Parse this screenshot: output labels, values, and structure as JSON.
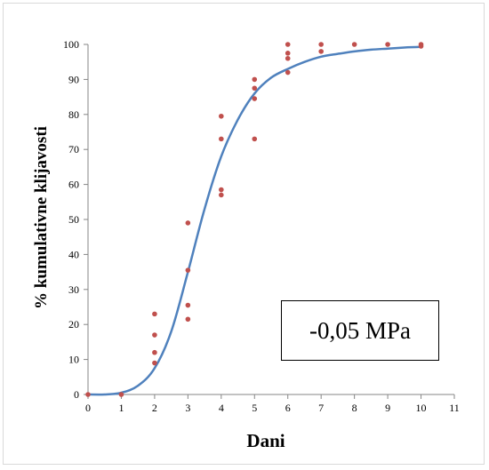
{
  "chart_data": {
    "type": "scatter",
    "title": "",
    "xlabel": "Dani",
    "ylabel": "% kumulativne klijavosti",
    "annotation": "-0,05 MPa",
    "xlim": [
      0,
      11
    ],
    "ylim": [
      0,
      100
    ],
    "x_ticks": [
      0,
      1,
      2,
      3,
      4,
      5,
      6,
      7,
      8,
      9,
      10,
      11
    ],
    "y_ticks": [
      0,
      10,
      20,
      30,
      40,
      50,
      60,
      70,
      80,
      90,
      100
    ],
    "grid": false,
    "series": [
      {
        "kind": "points",
        "color": "#c0504d",
        "points": [
          [
            0,
            0
          ],
          [
            1,
            0
          ],
          [
            2,
            23
          ],
          [
            2,
            17
          ],
          [
            2,
            12
          ],
          [
            2,
            9
          ],
          [
            3,
            49
          ],
          [
            3,
            35.5
          ],
          [
            3,
            25.5
          ],
          [
            3,
            21.5
          ],
          [
            4,
            79.5
          ],
          [
            4,
            73
          ],
          [
            4,
            58.5
          ],
          [
            4,
            57
          ],
          [
            5,
            90
          ],
          [
            5,
            87.5
          ],
          [
            5,
            84.5
          ],
          [
            5,
            73
          ],
          [
            6,
            100
          ],
          [
            6,
            97.5
          ],
          [
            6,
            96
          ],
          [
            6,
            92
          ],
          [
            7,
            100
          ],
          [
            7,
            98
          ],
          [
            8,
            100
          ],
          [
            9,
            100
          ],
          [
            10,
            100
          ],
          [
            10,
            99.5
          ]
        ]
      },
      {
        "kind": "fitted-curve",
        "color": "#4f81bd",
        "points": [
          [
            0,
            0
          ],
          [
            0.5,
            0
          ],
          [
            1,
            0.5
          ],
          [
            1.5,
            2.5
          ],
          [
            2,
            7.5
          ],
          [
            2.5,
            18
          ],
          [
            3,
            35
          ],
          [
            3.5,
            53
          ],
          [
            4,
            68
          ],
          [
            4.5,
            78.5
          ],
          [
            5,
            86
          ],
          [
            5.5,
            90.5
          ],
          [
            6,
            93
          ],
          [
            6.5,
            95
          ],
          [
            7,
            96.5
          ],
          [
            7.5,
            97.3
          ],
          [
            8,
            98
          ],
          [
            8.5,
            98.5
          ],
          [
            9,
            98.8
          ],
          [
            9.5,
            99.1
          ],
          [
            10,
            99.3
          ]
        ]
      }
    ]
  }
}
